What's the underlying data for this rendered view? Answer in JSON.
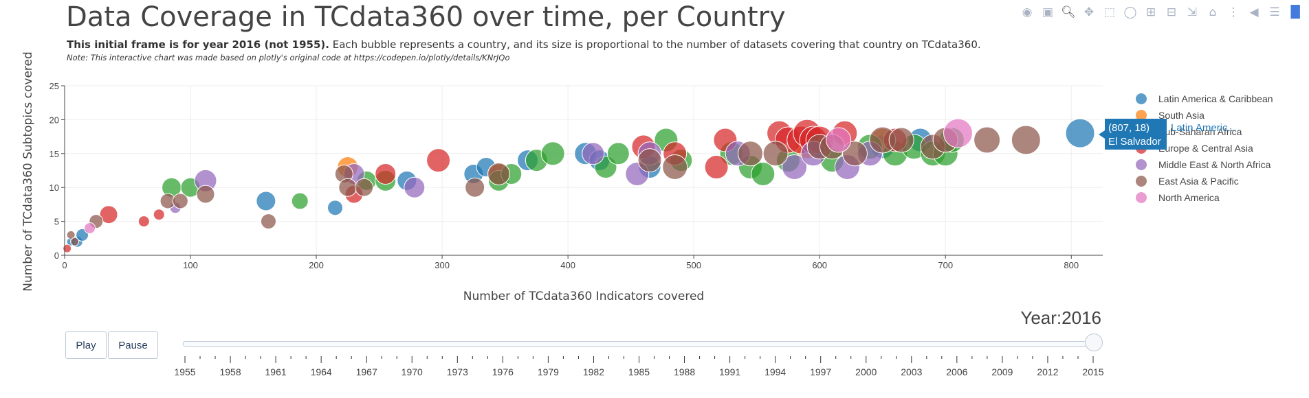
{
  "header": {
    "title": "Data Coverage in TCdata360 over time, per Country",
    "subtitle_bold": "This initial frame is for year 2016 (not 1955).",
    "subtitle_rest": " Each bubble represents a country, and its size is proportional to the number of datasets covering that country on TCdata360.",
    "note": "Note: This interactive chart was made based on plotly's original code at https://codepen.io/plotly/details/KNrJQo"
  },
  "modebar": {
    "icons": [
      "camera-icon",
      "save-icon",
      "zoom-icon",
      "pan-icon",
      "box-select-icon",
      "lasso-icon",
      "zoom-in-icon",
      "zoom-out-icon",
      "autoscale-icon",
      "reset-icon",
      "spike-icon",
      "hover-closest-icon",
      "hover-compare-icon",
      "plotly-logo-icon"
    ]
  },
  "controls": {
    "play_label": "Play",
    "pause_label": "Pause",
    "year_label": "Year:2016",
    "current_year": 2016,
    "slider_position": 1.0,
    "slider_ticks": [
      "1955",
      "1958",
      "1961",
      "1964",
      "1967",
      "1970",
      "1973",
      "1976",
      "1979",
      "1982",
      "1985",
      "1988",
      "1991",
      "1994",
      "1997",
      "2000",
      "2003",
      "2006",
      "2009",
      "2012",
      "2015"
    ]
  },
  "tooltip": {
    "coords": "(807, 18)",
    "country": "El Salvador",
    "trace": "Latin Americ..."
  },
  "chart_data": {
    "type": "scatter",
    "xlabel": "Number of TCdata360 Indicators covered",
    "ylabel": "Number of TCdata360 Subtopics covered",
    "xlim": [
      0,
      825
    ],
    "ylim": [
      0,
      25
    ],
    "xticks": [
      0,
      100,
      200,
      300,
      400,
      500,
      600,
      700,
      800
    ],
    "yticks": [
      0,
      5,
      10,
      15,
      20,
      25
    ],
    "grid": true,
    "legend_position": "top-right",
    "series": [
      {
        "name": "Latin America & Caribbean",
        "color": "#1f77b4",
        "x": [
          5,
          10,
          14,
          160,
          215,
          272,
          325,
          335,
          345,
          368,
          414,
          425,
          465,
          600,
          650,
          680,
          807
        ],
        "y": [
          2,
          2,
          3,
          8,
          7,
          11,
          12,
          13,
          12,
          14,
          15,
          14,
          13,
          16,
          16,
          17,
          18
        ],
        "s": [
          6,
          8,
          9,
          14,
          11,
          14,
          14,
          14,
          14,
          15,
          16,
          15,
          16,
          16,
          17,
          17,
          21
        ]
      },
      {
        "name": "South Asia",
        "color": "#ff7f0e",
        "x": [
          225,
          345,
          590,
          650
        ],
        "y": [
          13,
          12,
          16,
          17
        ],
        "s": [
          15,
          15,
          17,
          17
        ]
      },
      {
        "name": "Sub-Saharan Africa",
        "color": "#2ca02c",
        "x": [
          85,
          100,
          187,
          240,
          255,
          345,
          355,
          375,
          388,
          430,
          440,
          478,
          490,
          530,
          545,
          555,
          575,
          610,
          640,
          660,
          675,
          690,
          700,
          705
        ],
        "y": [
          10,
          10,
          8,
          11,
          11,
          11,
          12,
          14,
          15,
          13,
          15,
          17,
          14,
          15,
          13,
          12,
          14,
          14,
          16,
          15,
          16,
          15,
          15,
          17
        ],
        "s": [
          14,
          14,
          12,
          14,
          15,
          15,
          15,
          16,
          17,
          16,
          16,
          17,
          16,
          17,
          17,
          17,
          17,
          17,
          18,
          18,
          18,
          18,
          18,
          18
        ]
      },
      {
        "name": "Europe & Central Asia",
        "color": "#d62728",
        "x": [
          2,
          35,
          63,
          75,
          230,
          255,
          297,
          460,
          485,
          518,
          525,
          568,
          575,
          585,
          590,
          595,
          600,
          620,
          660
        ],
        "y": [
          1,
          6,
          5,
          6,
          9,
          12,
          14,
          16,
          15,
          13,
          17,
          18,
          17,
          17,
          18,
          17,
          17,
          18,
          17
        ],
        "s": [
          6,
          13,
          8,
          8,
          13,
          15,
          17,
          17,
          17,
          17,
          17,
          18,
          19,
          20,
          20,
          20,
          20,
          18,
          17
        ]
      },
      {
        "name": "Middle East & North Africa",
        "color": "#9467bd",
        "x": [
          88,
          112,
          230,
          278,
          420,
          455,
          465,
          535,
          580,
          595,
          622,
          640
        ],
        "y": [
          7,
          11,
          12,
          10,
          15,
          12,
          15,
          15,
          13,
          15,
          13,
          15
        ],
        "s": [
          8,
          16,
          15,
          15,
          16,
          17,
          17,
          18,
          18,
          18,
          18,
          18
        ]
      },
      {
        "name": "East Asia & Pacific",
        "color": "#8c564b",
        "x": [
          5,
          8,
          25,
          82,
          92,
          112,
          162,
          222,
          225,
          238,
          326,
          345,
          465,
          485,
          545,
          565,
          600,
          610,
          628,
          650,
          665,
          690,
          700,
          733,
          764
        ],
        "y": [
          3,
          2,
          5,
          8,
          8,
          9,
          5,
          12,
          10,
          10,
          10,
          12,
          14,
          13,
          15,
          15,
          16,
          16,
          15,
          17,
          17,
          16,
          17,
          17,
          17
        ],
        "s": [
          6,
          6,
          10,
          11,
          11,
          13,
          11,
          13,
          13,
          13,
          14,
          16,
          17,
          18,
          18,
          18,
          18,
          18,
          18,
          19,
          18,
          18,
          18,
          19,
          21
        ]
      },
      {
        "name": "North America",
        "color": "#e377c2",
        "x": [
          20,
          615,
          710
        ],
        "y": [
          4,
          17,
          18
        ],
        "s": [
          8,
          18,
          21
        ]
      }
    ]
  }
}
